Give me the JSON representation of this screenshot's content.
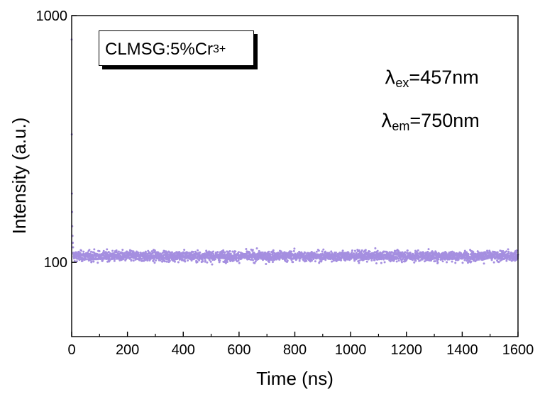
{
  "chart_data": {
    "type": "scatter",
    "title": "",
    "xlabel": "Time (ns)",
    "ylabel": "Intensity (a.u.)",
    "xlim": [
      0,
      1600
    ],
    "ylim": [
      50,
      1000
    ],
    "yscale": "log",
    "x_ticks": [
      0,
      200,
      400,
      600,
      800,
      1000,
      1200,
      1400,
      1600
    ],
    "x_tick_labels": [
      "0",
      "200",
      "400",
      "600",
      "800",
      "1000",
      "1200",
      "1400",
      "1600"
    ],
    "y_tick_labels": [
      "100",
      "1000"
    ],
    "y_ticks": [
      100,
      1000
    ],
    "grid": false,
    "series_color": "#a58fe0",
    "series": [
      {
        "name": "",
        "description_points": "noisy flat decay data; early spike near t=0 then baseline ~100",
        "initial_points": [
          [
            0.0,
            800
          ],
          [
            0.5,
            330
          ],
          [
            1.0,
            190
          ],
          [
            1.5,
            160
          ],
          [
            2.0,
            140
          ],
          [
            3.0,
            128
          ],
          [
            4.0,
            120
          ],
          [
            5.0,
            115
          ]
        ],
        "baseline_mean": 106,
        "baseline_min": 70,
        "baseline_max": 145,
        "x_start": 0,
        "x_end": 1600,
        "x_step": 0.5
      }
    ],
    "legend_label_main": "CLMSG:5%Cr",
    "legend_label_sup": "3+",
    "annotations": [
      {
        "symbol": "λ",
        "sub": "ex",
        "text": "=457nm"
      },
      {
        "symbol": "λ",
        "sub": "em",
        "text": "=750nm"
      }
    ]
  }
}
